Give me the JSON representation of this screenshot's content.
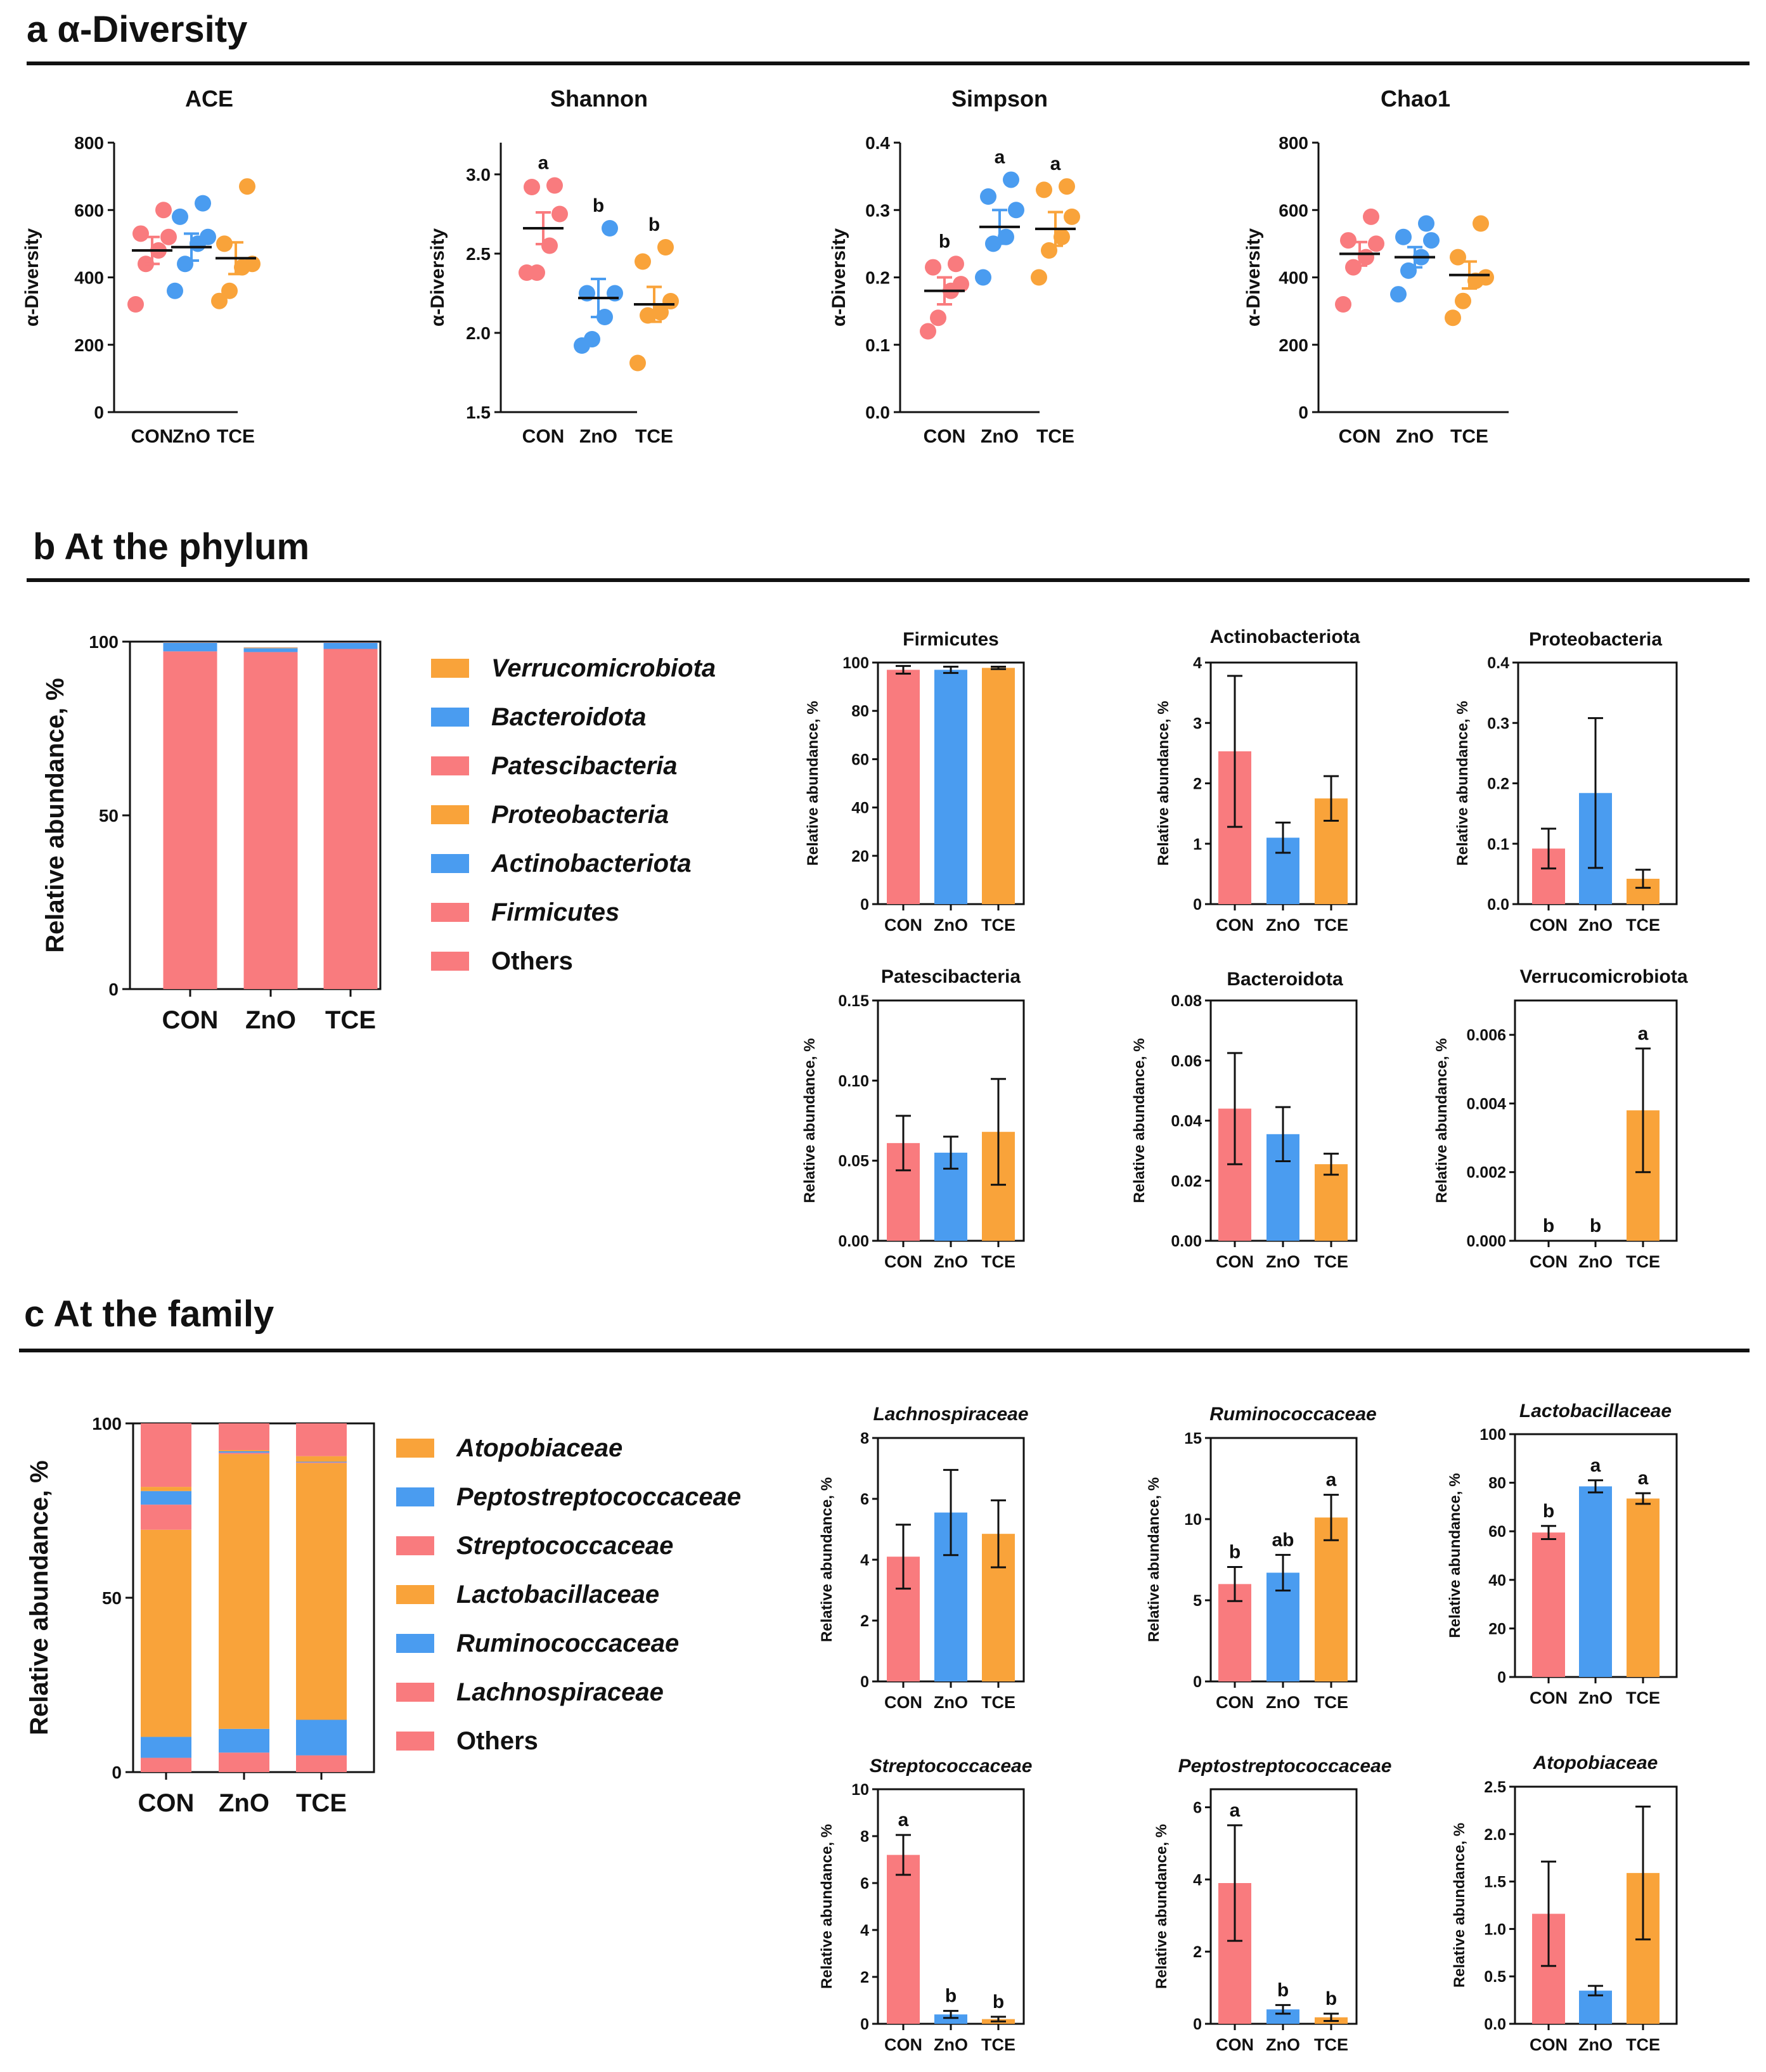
{
  "sections": {
    "a": "a α-Diversity",
    "b": "b At the  phylum",
    "c": "c At the family"
  },
  "groups": [
    "CON",
    "ZnO",
    "TCE"
  ],
  "colors": {
    "CON": "#f97b7e",
    "ZnO": "#4a9cf0",
    "TCE": "#f9a33a"
  },
  "chart_data": [
    {
      "id": "ace",
      "type": "scatter",
      "title": "ACE",
      "ylabel": "α-Diversity",
      "ylim": [
        0,
        800
      ],
      "yticks": [
        0,
        200,
        400,
        600,
        800
      ],
      "categories": [
        "CON",
        "ZnO",
        "TCE"
      ],
      "means": [
        480,
        490,
        457
      ],
      "sem": [
        40,
        40,
        47
      ],
      "points": [
        [
          320,
          440,
          480,
          520,
          530,
          600
        ],
        [
          360,
          440,
          500,
          520,
          580,
          620
        ],
        [
          330,
          360,
          430,
          440,
          500,
          670
        ]
      ],
      "sig": []
    },
    {
      "id": "shannon",
      "type": "scatter",
      "title": "Shannon",
      "ylabel": "α-Diversity",
      "ylim": [
        1.5,
        3.2
      ],
      "yticks": [
        1.5,
        2.0,
        2.5,
        3.0
      ],
      "categories": [
        "CON",
        "ZnO",
        "TCE"
      ],
      "means": [
        2.66,
        2.22,
        2.18
      ],
      "sem": [
        0.1,
        0.12,
        0.11
      ],
      "points": [
        [
          2.38,
          2.38,
          2.55,
          2.75,
          2.92,
          2.93
        ],
        [
          1.92,
          1.96,
          2.1,
          2.25,
          2.25,
          2.66
        ],
        [
          1.81,
          2.11,
          2.13,
          2.2,
          2.45,
          2.54
        ]
      ],
      "sig": [
        "a",
        "b",
        "b"
      ]
    },
    {
      "id": "simpson",
      "type": "scatter",
      "title": "Simpson",
      "ylabel": "α-Diversity",
      "ylim": [
        0.0,
        0.4
      ],
      "yticks": [
        0.0,
        0.1,
        0.2,
        0.3,
        0.4
      ],
      "categories": [
        "CON",
        "ZnO",
        "TCE"
      ],
      "means": [
        0.18,
        0.275,
        0.272
      ],
      "sem": [
        0.02,
        0.025,
        0.025
      ],
      "points": [
        [
          0.12,
          0.14,
          0.18,
          0.19,
          0.215,
          0.22
        ],
        [
          0.2,
          0.25,
          0.26,
          0.3,
          0.32,
          0.345
        ],
        [
          0.2,
          0.24,
          0.26,
          0.29,
          0.33,
          0.335
        ]
      ],
      "sig": [
        "b",
        "a",
        "a"
      ]
    },
    {
      "id": "chao1",
      "type": "scatter",
      "title": "Chao1",
      "ylabel": "α-Diversity",
      "ylim": [
        0,
        800
      ],
      "yticks": [
        0,
        200,
        400,
        600,
        800
      ],
      "categories": [
        "CON",
        "ZnO",
        "TCE"
      ],
      "means": [
        470,
        460,
        407
      ],
      "sem": [
        35,
        30,
        40
      ],
      "points": [
        [
          320,
          430,
          460,
          500,
          510,
          580
        ],
        [
          350,
          420,
          460,
          510,
          520,
          560
        ],
        [
          280,
          330,
          390,
          400,
          460,
          560
        ]
      ],
      "sig": []
    },
    {
      "id": "phylum-stack",
      "type": "bar",
      "stacked": true,
      "ylabel": "Relative abundance, %",
      "ylim": [
        0,
        100
      ],
      "yticks": [
        0,
        50,
        100
      ],
      "categories": [
        "CON",
        "ZnO",
        "TCE"
      ],
      "series": [
        {
          "name": "Others",
          "values": [
            0,
            0,
            0
          ],
          "color": "#f97b7e"
        },
        {
          "name": "Firmicutes",
          "values": [
            97.2,
            97.0,
            97.9
          ],
          "color": "#f97b7e"
        },
        {
          "name": "Actinobacteriota",
          "values": [
            2.5,
            1.1,
            1.75
          ],
          "color": "#4a9cf0"
        },
        {
          "name": "Proteobacteria",
          "values": [
            0.09,
            0.18,
            0.04
          ],
          "color": "#f9a33a"
        },
        {
          "name": "Patescibacteria",
          "values": [
            0.06,
            0.055,
            0.07
          ],
          "color": "#f97b7e"
        },
        {
          "name": "Bacteroidota",
          "values": [
            0.04,
            0.035,
            0.025
          ],
          "color": "#4a9cf0"
        },
        {
          "name": "Verrucomicrobiota",
          "values": [
            0,
            0,
            0.004
          ],
          "color": "#f9a33a"
        }
      ],
      "legend": [
        "Verrucomicrobiota",
        "Bacteroidota",
        "Patescibacteria",
        "Proteobacteria",
        "Actinobacteriota",
        "Firmicutes",
        "Others"
      ]
    },
    {
      "id": "firmicutes",
      "type": "bar",
      "title": "Firmicutes",
      "italic": false,
      "ylabel": "Relative abundance, %",
      "ylim": [
        0,
        100
      ],
      "yticks": [
        0,
        20,
        40,
        60,
        80,
        100
      ],
      "ydec": 0,
      "categories": [
        "CON",
        "ZnO",
        "TCE"
      ],
      "values": [
        97,
        97,
        97.8
      ],
      "err": [
        1.6,
        1.3,
        0.5
      ],
      "sig": []
    },
    {
      "id": "actinobacteriota",
      "type": "bar",
      "title": "Actinobacteriota",
      "italic": false,
      "ylabel": "Relative abundance, %",
      "ylim": [
        0,
        4
      ],
      "yticks": [
        0,
        1,
        2,
        3,
        4
      ],
      "ydec": 0,
      "categories": [
        "CON",
        "ZnO",
        "TCE"
      ],
      "values": [
        2.53,
        1.1,
        1.75
      ],
      "err": [
        1.25,
        0.25,
        0.37
      ],
      "sig": []
    },
    {
      "id": "proteobacteria",
      "type": "bar",
      "title": "Proteobacteria",
      "italic": false,
      "ylabel": "Relative abundance, %",
      "ylim": [
        0,
        0.4
      ],
      "yticks": [
        0.0,
        0.1,
        0.2,
        0.3,
        0.4
      ],
      "ydec": 1,
      "categories": [
        "CON",
        "ZnO",
        "TCE"
      ],
      "values": [
        0.092,
        0.184,
        0.042
      ],
      "err": [
        0.033,
        0.124,
        0.015
      ],
      "sig": []
    },
    {
      "id": "patescibacteria",
      "type": "bar",
      "title": "Patescibacteria",
      "italic": false,
      "ylabel": "Relative abundance, %",
      "ylim": [
        0,
        0.15
      ],
      "yticks": [
        0.0,
        0.05,
        0.1,
        0.15
      ],
      "ydec": 2,
      "categories": [
        "CON",
        "ZnO",
        "TCE"
      ],
      "values": [
        0.061,
        0.055,
        0.068
      ],
      "err": [
        0.017,
        0.01,
        0.033
      ],
      "sig": []
    },
    {
      "id": "bacteroidota",
      "type": "bar",
      "title": "Bacteroidota",
      "italic": false,
      "ylabel": "Relative abundance, %",
      "ylim": [
        0,
        0.08
      ],
      "yticks": [
        0.0,
        0.02,
        0.04,
        0.06,
        0.08
      ],
      "ydec": 2,
      "categories": [
        "CON",
        "ZnO",
        "TCE"
      ],
      "values": [
        0.044,
        0.0355,
        0.0255
      ],
      "err": [
        0.0185,
        0.009,
        0.0035
      ],
      "sig": []
    },
    {
      "id": "verrucomicrobiota",
      "type": "bar",
      "title": "Verrucomicrobiota",
      "italic": false,
      "ylabel": "Relative abundance, %",
      "ylim": [
        0,
        0.007
      ],
      "yticks": [
        0.0,
        0.002,
        0.004,
        0.006
      ],
      "ydec": 3,
      "categories": [
        "CON",
        "ZnO",
        "TCE"
      ],
      "values": [
        0,
        0,
        0.0038
      ],
      "err": [
        0,
        0,
        0.0018
      ],
      "sig": [
        "b",
        "b",
        "a"
      ]
    },
    {
      "id": "family-stack",
      "type": "bar",
      "stacked": true,
      "ylabel": "Relative abundance, %",
      "ylim": [
        0,
        100
      ],
      "yticks": [
        0,
        50,
        100
      ],
      "categories": [
        "CON",
        "ZnO",
        "TCE"
      ],
      "series": [
        {
          "name": "Lachnospiraceae",
          "values": [
            4.1,
            5.6,
            4.8
          ],
          "color": "#f97b7e"
        },
        {
          "name": "Ruminococcaceae",
          "values": [
            6.0,
            6.8,
            10.2
          ],
          "color": "#4a9cf0"
        },
        {
          "name": "Lactobacillaceae",
          "values": [
            59.4,
            78.8,
            73.6
          ],
          "color": "#f9a33a"
        },
        {
          "name": "Streptococcaceae",
          "values": [
            7.2,
            0.4,
            0.2
          ],
          "color": "#f97b7e"
        },
        {
          "name": "Peptostreptococcaceae",
          "values": [
            3.9,
            0.4,
            0.2
          ],
          "color": "#4a9cf0"
        },
        {
          "name": "Atopobiaceae",
          "values": [
            1.2,
            0.35,
            1.6
          ],
          "color": "#f9a33a"
        },
        {
          "name": "Others",
          "values": [
            18.2,
            7.65,
            9.4
          ],
          "color": "#f97b7e"
        }
      ],
      "legend": [
        "Atopobiaceae",
        "Peptostreptococcaceae",
        "Streptococcaceae",
        "Lactobacillaceae",
        "Ruminococcaceae",
        "Lachnospiraceae",
        "Others"
      ]
    },
    {
      "id": "lachnospiraceae",
      "type": "bar",
      "title": "Lachnospiraceae",
      "italic": true,
      "ylabel": "Relative abundance, %",
      "ylim": [
        0,
        8
      ],
      "yticks": [
        0,
        2,
        4,
        6,
        8
      ],
      "ydec": 0,
      "categories": [
        "CON",
        "ZnO",
        "TCE"
      ],
      "values": [
        4.1,
        5.55,
        4.85
      ],
      "err": [
        1.05,
        1.4,
        1.1
      ],
      "sig": []
    },
    {
      "id": "ruminococcaceae",
      "type": "bar",
      "title": "Ruminococcaceae",
      "italic": true,
      "ylabel": "Relative abundance, %",
      "ylim": [
        0,
        15
      ],
      "yticks": [
        0,
        5,
        10,
        15
      ],
      "ydec": 0,
      "categories": [
        "CON",
        "ZnO",
        "TCE"
      ],
      "values": [
        6.0,
        6.7,
        10.1
      ],
      "err": [
        1.05,
        1.1,
        1.4
      ],
      "sig": [
        "b",
        "ab",
        "a"
      ]
    },
    {
      "id": "lactobacillaceae",
      "type": "bar",
      "title": "Lactobacillaceae",
      "italic": true,
      "ylabel": "Relative abundance, %",
      "ylim": [
        0,
        100
      ],
      "yticks": [
        0,
        20,
        40,
        60,
        80,
        100
      ],
      "ydec": 0,
      "categories": [
        "CON",
        "ZnO",
        "TCE"
      ],
      "values": [
        59.5,
        78.5,
        73.5
      ],
      "err": [
        2.7,
        2.5,
        2.2
      ],
      "sig": [
        "b",
        "a",
        "a"
      ]
    },
    {
      "id": "streptococcaceae",
      "type": "bar",
      "title": "Streptococcaceae",
      "italic": true,
      "ylabel": "Relative abundance, %",
      "ylim": [
        0,
        10
      ],
      "yticks": [
        0,
        2,
        4,
        6,
        8,
        10
      ],
      "ydec": 0,
      "categories": [
        "CON",
        "ZnO",
        "TCE"
      ],
      "values": [
        7.2,
        0.4,
        0.2
      ],
      "err": [
        0.85,
        0.15,
        0.1
      ],
      "sig": [
        "a",
        "b",
        "b"
      ]
    },
    {
      "id": "peptostreptococcaceae",
      "type": "bar",
      "title": "Peptostreptococcaceae",
      "italic": true,
      "ylabel": "Relative abundance, %",
      "ylim": [
        0,
        6.5
      ],
      "yticks": [
        0,
        2,
        4,
        6
      ],
      "ydec": 0,
      "categories": [
        "CON",
        "ZnO",
        "TCE"
      ],
      "values": [
        3.9,
        0.4,
        0.18
      ],
      "err": [
        1.6,
        0.12,
        0.1
      ],
      "sig": [
        "a",
        "b",
        "b"
      ]
    },
    {
      "id": "atopobiaceae",
      "type": "bar",
      "title": "Atopobiaceae",
      "italic": true,
      "ylabel": "Relative abundance, %",
      "ylim": [
        0,
        2.5
      ],
      "yticks": [
        0.0,
        0.5,
        1.0,
        1.5,
        2.0,
        2.5
      ],
      "ydec": 1,
      "categories": [
        "CON",
        "ZnO",
        "TCE"
      ],
      "values": [
        1.16,
        0.35,
        1.59
      ],
      "err": [
        0.55,
        0.05,
        0.7
      ],
      "sig": []
    }
  ]
}
